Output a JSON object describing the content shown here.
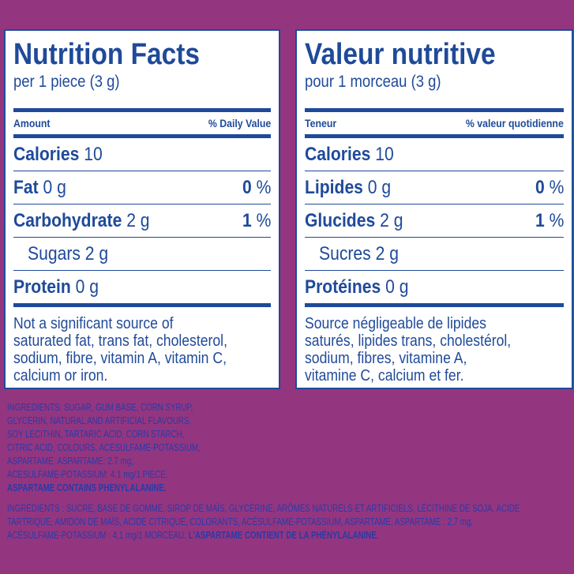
{
  "panels": [
    {
      "title": "Nutrition Facts",
      "serving": "per 1 piece (3 g)",
      "amount_header": "Amount",
      "dv_header": "% Daily Value",
      "rows": [
        {
          "label": "Calories",
          "amount": "10"
        },
        {
          "label": "Fat",
          "amount": "0 g",
          "dv": "0",
          "unit": "%"
        },
        {
          "label": "Carbohydrate",
          "amount": "2 g",
          "dv": "1",
          "unit": "%"
        },
        {
          "label": "Sugars",
          "amount": "2 g",
          "sub": true
        },
        {
          "label": "Protein",
          "amount": "0 g"
        }
      ],
      "footnote": [
        "Not a significant source of",
        "saturated fat, trans fat, cholesterol,",
        "sodium, fibre, vitamin A, vitamin C,",
        "calcium or iron."
      ]
    },
    {
      "title": "Valeur nutritive",
      "serving": "pour 1 morceau (3 g)",
      "amount_header": "Teneur",
      "dv_header": "% valeur quotidienne",
      "rows": [
        {
          "label": "Calories",
          "amount": "10"
        },
        {
          "label": "Lipides",
          "amount": "0 g",
          "dv": "0",
          "unit": "%"
        },
        {
          "label": "Glucides",
          "amount": "2 g",
          "dv": "1",
          "unit": "%"
        },
        {
          "label": "Sucres",
          "amount": "2 g",
          "sub": true
        },
        {
          "label": "Protéines",
          "amount": "0 g"
        }
      ],
      "footnote": [
        "Source négligeable de lipides",
        "saturés, lipides trans, cholestérol,",
        "sodium, fibres, vitamine A,",
        "vitamine C, calcium et fer."
      ]
    }
  ],
  "ingredients_en": [
    [
      {
        "text": "INGREDIENTS: SUGAR, GUM BASE, CORN SYRUP,"
      }
    ],
    [
      {
        "text": "GLYCERIN, NATURAL AND ARTIFICIAL FLAVOURS,"
      }
    ],
    [
      {
        "text": "SOY LECITHIN, TARTARIC ACID, CORN STARCH,"
      }
    ],
    [
      {
        "text": "CITRIC ACID, COLOURS, ACESULFAME-POTASSIUM,"
      }
    ],
    [
      {
        "text": "ASPARTAME. ASPARTAME: 2.7 mg,"
      }
    ],
    [
      {
        "text": "ACESULFAME-POTASSIUM: 4.1 mg/1 PIECE."
      }
    ],
    [
      {
        "text": "ASPARTAME CONTAINS PHENYLALANINE.",
        "bold": true
      }
    ]
  ],
  "ingredients_fr": [
    [
      {
        "text": "INGRÉDIENTS : SUCRE, BASE DE GOMME, SIROP DE MAÏS, GLYCÉRINE, ARÔMES NATURELS ET ARTIFICIELS, LÉCITHINE DE SOJA, ACIDE"
      }
    ],
    [
      {
        "text": "TARTRIQUE, AMIDON DE MAÏS, ACIDE CITRIQUE, COLORANTS, ACÉSULFAME-POTASSIUM, ASPARTAME. ASPARTAME : 2,7 mg,"
      }
    ],
    [
      {
        "text": "ACÉSULFAME-POTASSIUM : 4,1 mg/1 MORCEAU."
      },
      {
        "text": "L'ASPARTAME CONTIENT DE LA PHÉNYLALANINE.",
        "bold": true
      }
    ]
  ]
}
